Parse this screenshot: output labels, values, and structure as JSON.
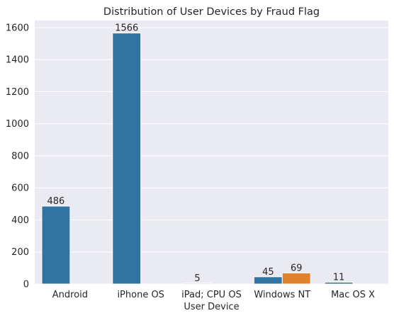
{
  "chart_data": {
    "type": "bar",
    "title": "Distribution of User Devices by Fraud Flag",
    "xlabel": "User Device",
    "ylabel": "",
    "categories": [
      "Android",
      "iPhone OS",
      "iPad; CPU OS",
      "Windows NT",
      "Mac OS X"
    ],
    "series": [
      {
        "values": [
          486,
          1566,
          5,
          45,
          11
        ],
        "color": "#3274a1"
      },
      {
        "values": [
          0,
          0,
          0,
          69,
          0
        ],
        "color": "#e1812c"
      }
    ],
    "data_labels": [
      [
        "486",
        "1566",
        "5",
        "45",
        "11"
      ],
      [
        "",
        "",
        "",
        "69",
        ""
      ]
    ],
    "ylim": [
      0,
      1644
    ],
    "yticks": [
      0,
      200,
      400,
      600,
      800,
      1000,
      1200,
      1400,
      1600
    ],
    "grid": true,
    "background": "#eaeaf2",
    "legend": "none"
  }
}
